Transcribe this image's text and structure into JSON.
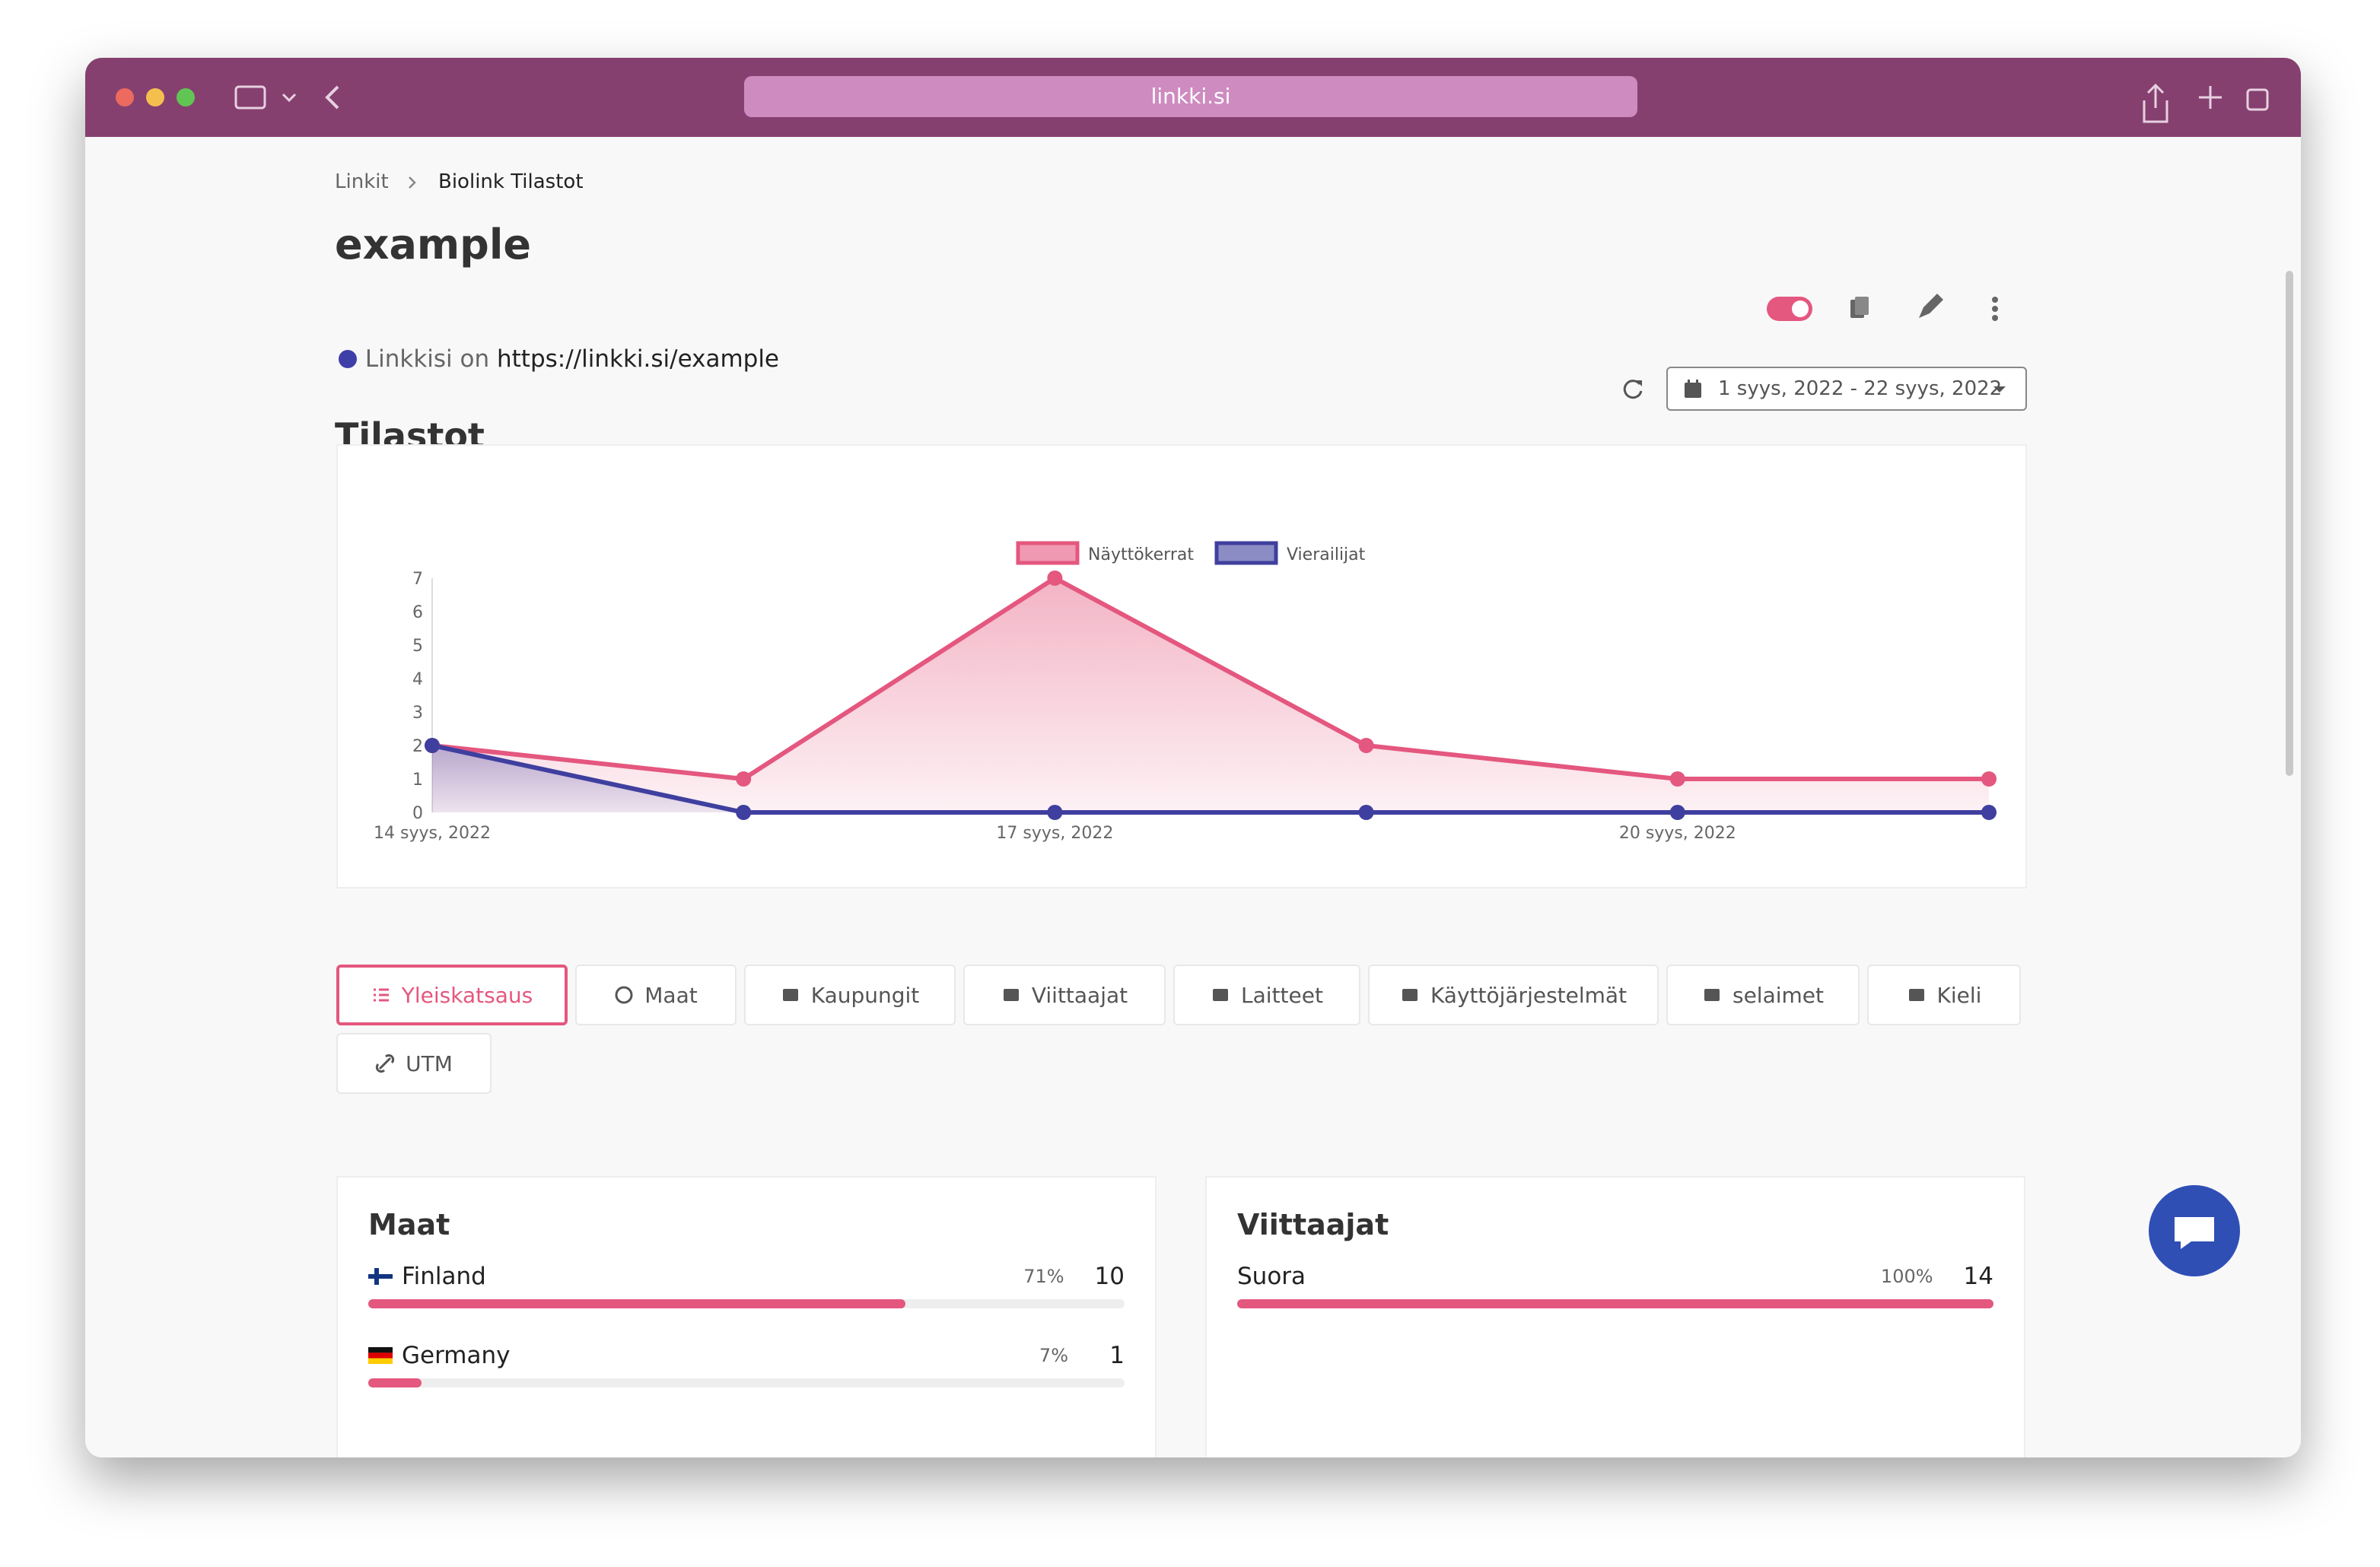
{
  "browser": {
    "url": "linkki.si"
  },
  "breadcrumb": [
    "Linkit",
    "Biolink Tilastot"
  ],
  "header": {
    "title": "example",
    "link_prefix": "Linkkisi on",
    "link_url": "https://linkki.si/example"
  },
  "stats": {
    "title": "Tilastot",
    "date_range": "1 syys, 2022 - 22 syys, 2022"
  },
  "chart_data": {
    "type": "line",
    "categories": [
      "14 syys, 2022",
      null,
      "17 syys, 2022",
      null,
      "20 syys, 2022",
      null
    ],
    "series": [
      {
        "name": "Näyttökerrat",
        "color": "#e4577f",
        "values": [
          2,
          1,
          7,
          2,
          1,
          1
        ]
      },
      {
        "name": "Vierailijat",
        "color": "#3f3f9f",
        "values": [
          2,
          0,
          0,
          0,
          0,
          0
        ]
      }
    ],
    "ylim": [
      0,
      7
    ],
    "yticks": [
      0,
      1,
      2,
      3,
      4,
      5,
      6,
      7
    ],
    "grid": false,
    "legend": "top"
  },
  "tabs": [
    "Yleiskatsaus",
    "Maat",
    "Kaupungit",
    "Viittaajat",
    "Laitteet",
    "Käyttöjärjestelmät",
    "selaimet",
    "Kieli",
    "UTM"
  ],
  "cards": [
    {
      "title": "Maat",
      "rows": [
        {
          "name": "Finland",
          "percent": 71,
          "percent_label": "71%",
          "count": 10
        },
        {
          "name": "Germany",
          "percent": 7,
          "percent_label": "7%",
          "count": 1
        }
      ]
    },
    {
      "title": "Viittaajat",
      "rows": [
        {
          "name": "Suora",
          "percent": 100,
          "percent_label": "100%",
          "count": 14
        }
      ]
    }
  ]
}
